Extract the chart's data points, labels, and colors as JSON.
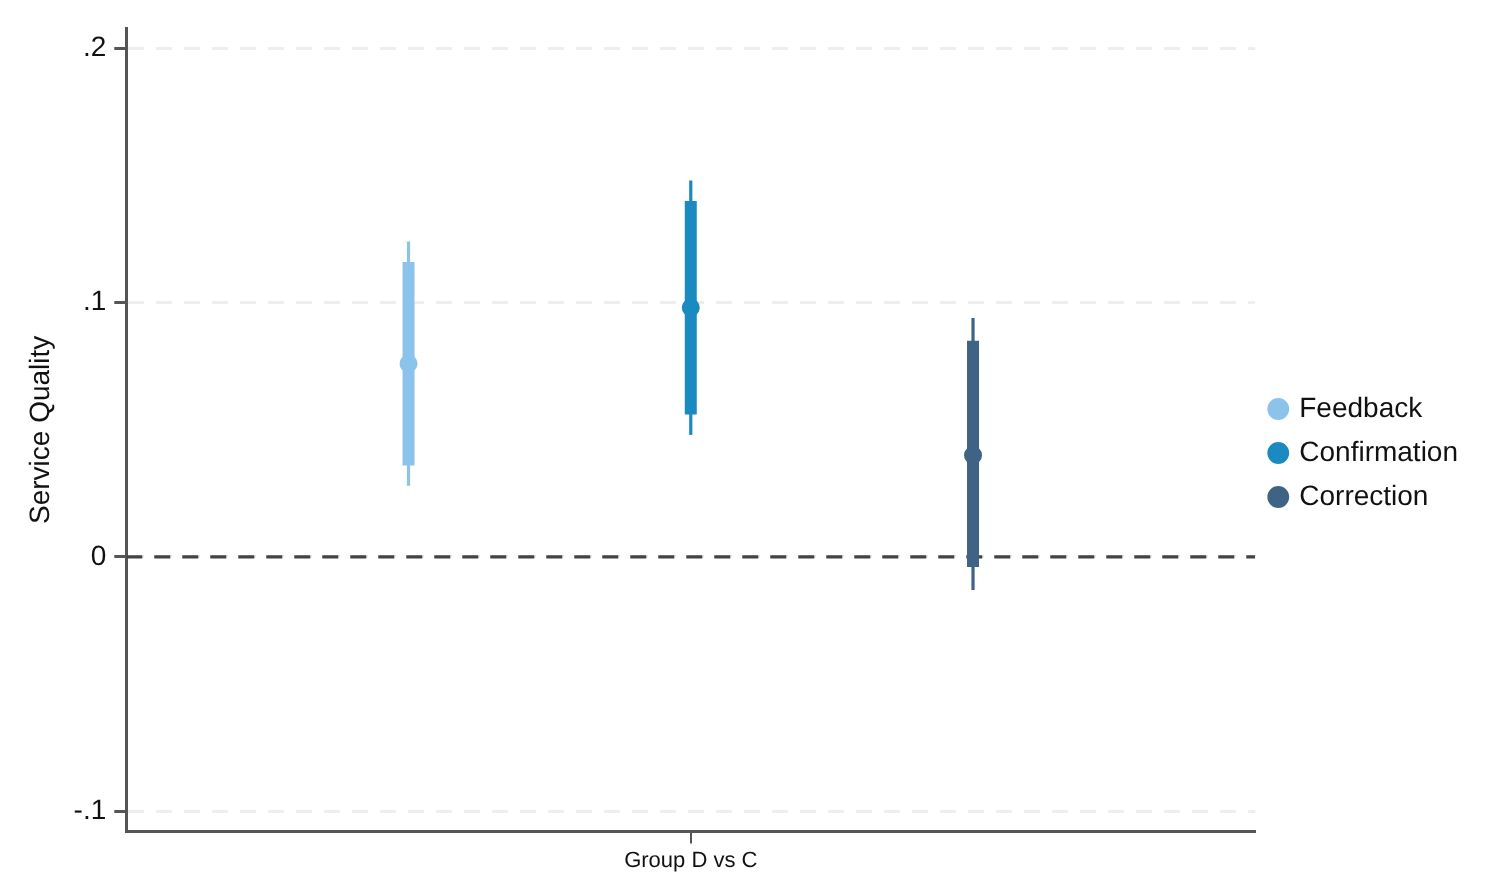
{
  "chart_data": {
    "type": "box",
    "ylabel": "Service Quality",
    "categories": [
      "Group D vs C"
    ],
    "series": [
      {
        "name": "Feedback",
        "color": "#8cc3ea",
        "boxes": [
          {
            "low": 0.028,
            "q1": 0.036,
            "median": 0.076,
            "q3": 0.116,
            "high": 0.124
          }
        ]
      },
      {
        "name": "Confirmation",
        "color": "#1a8ac0",
        "boxes": [
          {
            "low": 0.048,
            "q1": 0.056,
            "median": 0.098,
            "q3": 0.14,
            "high": 0.148
          }
        ]
      },
      {
        "name": "Correction",
        "color": "#3f6384",
        "boxes": [
          {
            "low": -0.013,
            "q1": -0.004,
            "median": 0.04,
            "q3": 0.085,
            "high": 0.094
          }
        ]
      }
    ],
    "ylim": [
      -0.108,
      0.208
    ],
    "yticks": [
      {
        "value": -0.1,
        "label": "-.1"
      },
      {
        "value": 0,
        "label": "0"
      },
      {
        "value": 0.1,
        "label": ".1"
      },
      {
        "value": 0.2,
        "label": ".2"
      }
    ],
    "ref_lines": [
      {
        "axis": "y",
        "value": 0,
        "color": "#444444",
        "line_style": "dashed"
      }
    ],
    "grid": "y",
    "legend": "right",
    "marker": "circle"
  }
}
